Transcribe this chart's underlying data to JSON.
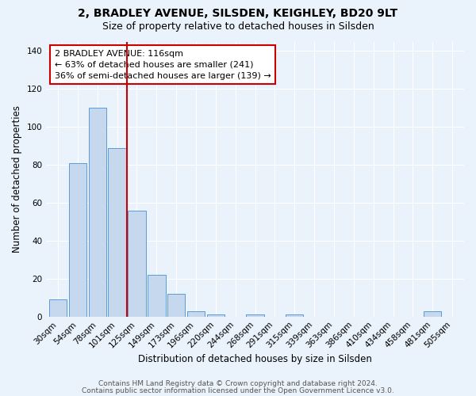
{
  "title": "2, BRADLEY AVENUE, SILSDEN, KEIGHLEY, BD20 9LT",
  "subtitle": "Size of property relative to detached houses in Silsden",
  "xlabel": "Distribution of detached houses by size in Silsden",
  "ylabel": "Number of detached properties",
  "bar_labels": [
    "30sqm",
    "54sqm",
    "78sqm",
    "101sqm",
    "125sqm",
    "149sqm",
    "173sqm",
    "196sqm",
    "220sqm",
    "244sqm",
    "268sqm",
    "291sqm",
    "315sqm",
    "339sqm",
    "363sqm",
    "386sqm",
    "410sqm",
    "434sqm",
    "458sqm",
    "481sqm",
    "505sqm"
  ],
  "bar_values": [
    9,
    81,
    110,
    89,
    56,
    22,
    12,
    3,
    1,
    0,
    1,
    0,
    1,
    0,
    0,
    0,
    0,
    0,
    0,
    3,
    0
  ],
  "bar_color": "#c5d8ed",
  "bar_edge_color": "#5b9bd5",
  "ylim": [
    0,
    145
  ],
  "yticks": [
    0,
    20,
    40,
    60,
    80,
    100,
    120,
    140
  ],
  "red_line_x": 3.5,
  "marker_label": "2 BRADLEY AVENUE: 116sqm",
  "annotation_line1": "← 63% of detached houses are smaller (241)",
  "annotation_line2": "36% of semi-detached houses are larger (139) →",
  "footer1": "Contains HM Land Registry data © Crown copyright and database right 2024.",
  "footer2": "Contains public sector information licensed under the Open Government Licence v3.0.",
  "bg_color": "#eaf2fb",
  "plot_bg_color": "#eaf2fb",
  "grid_color": "#ffffff",
  "red_line_color": "#cc0000",
  "box_edge_color": "#cc0000",
  "title_fontsize": 10,
  "subtitle_fontsize": 9,
  "axis_label_fontsize": 8.5,
  "tick_fontsize": 7.5,
  "annotation_fontsize": 8,
  "footer_fontsize": 6.5
}
